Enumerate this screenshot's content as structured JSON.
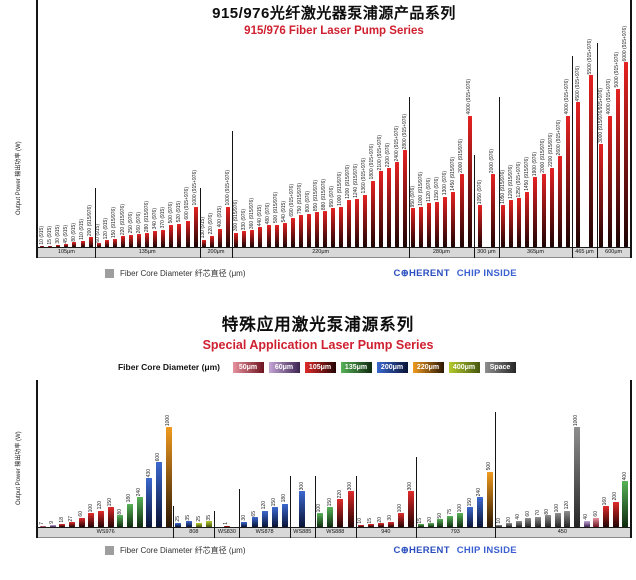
{
  "page": {
    "axis_legend": "Fiber Core Diameter  纤芯直径 (μm)",
    "brand": {
      "c": "C",
      "o": "⊕",
      "rest": "HERENT",
      "suffix": "CHIP INSIDE"
    }
  },
  "chart_data": [
    {
      "type": "bar",
      "title": "915/976光纤激光器泵浦源产品系列",
      "subtitle": "915/976 Fiber Laser Pump Series",
      "ylabel": "Output Power 输出功率 (W)",
      "xlabel": "Fiber Core Diameter 纤芯直径 (μm)",
      "ylim": [
        0,
        6000
      ],
      "grid": false,
      "bar_gradient": {
        "top": "#e62222",
        "bottom": "#1c0404"
      },
      "groups": [
        {
          "label": "105μm",
          "bars": [
            {
              "v": 10,
              "tag": "915"
            },
            {
              "v": 15,
              "tag": "915"
            },
            {
              "v": 30,
              "tag": "915"
            },
            {
              "v": 45,
              "tag": "915"
            },
            {
              "v": 80,
              "tag": "915"
            },
            {
              "v": 110,
              "tag": "915"
            },
            {
              "v": 200,
              "tag": "915/976"
            }
          ]
        },
        {
          "label": "135μm",
          "bars": [
            {
              "v": 60,
              "tag": "915"
            },
            {
              "v": 120,
              "tag": "915"
            },
            {
              "v": 150,
              "tag": "915/976"
            },
            {
              "v": 220,
              "tag": "915/976"
            },
            {
              "v": 250,
              "tag": "976"
            },
            {
              "v": 260,
              "tag": "976"
            },
            {
              "v": 280,
              "tag": "915/976"
            },
            {
              "v": 340,
              "tag": "976"
            },
            {
              "v": 370,
              "tag": "915"
            },
            {
              "v": 500,
              "tag": "976"
            },
            {
              "v": 520,
              "tag": "915"
            },
            {
              "v": 600,
              "tag": "915+976"
            },
            {
              "v": 1000,
              "tag": "915+976"
            }
          ]
        },
        {
          "label": "200μm",
          "bars": [
            {
              "v": 130,
              "tag": "915"
            },
            {
              "v": 220,
              "tag": "976"
            },
            {
              "v": 400,
              "tag": "915"
            },
            {
              "v": 1000,
              "tag": "915+976"
            }
          ]
        },
        {
          "label": "220μm",
          "bars": [
            {
              "v": 300,
              "tag": "915/976"
            },
            {
              "v": 330,
              "tag": "976"
            },
            {
              "v": 360,
              "tag": "915/976"
            },
            {
              "v": 440,
              "tag": "915"
            },
            {
              "v": 480,
              "tag": "976"
            },
            {
              "v": 500,
              "tag": "915/976"
            },
            {
              "v": 540,
              "tag": "915"
            },
            {
              "v": 690,
              "tag": "915+976"
            },
            {
              "v": 750,
              "tag": "915/976"
            },
            {
              "v": 800,
              "tag": "976"
            },
            {
              "v": 850,
              "tag": "915/976"
            },
            {
              "v": 880,
              "tag": "915/976"
            },
            {
              "v": 950,
              "tag": "976"
            },
            {
              "v": 1000,
              "tag": "915/976"
            },
            {
              "v": 1200,
              "tag": "915/976"
            },
            {
              "v": 1240,
              "tag": "915/976"
            },
            {
              "v": 1360,
              "tag": "915+976"
            },
            {
              "v": 1800,
              "tag": "915+976"
            },
            {
              "v": 2100,
              "tag": "915+976"
            },
            {
              "v": 2200,
              "tag": "976"
            },
            {
              "v": 2400,
              "tag": "915+976"
            },
            {
              "v": 2800,
              "tag": "915+976"
            }
          ]
        },
        {
          "label": "280μm",
          "bars": [
            {
              "v": 950,
              "tag": "976"
            },
            {
              "v": 1000,
              "tag": "915/976"
            },
            {
              "v": 1120,
              "tag": "976"
            },
            {
              "v": 1150,
              "tag": "976"
            },
            {
              "v": 1300,
              "tag": "976"
            },
            {
              "v": 1450,
              "tag": "915/976"
            },
            {
              "v": 2000,
              "tag": "915/976"
            },
            {
              "v": 4000,
              "tag": "915+976"
            }
          ]
        },
        {
          "label": "300 μm",
          "bars": [
            {
              "v": 1050,
              "tag": "976"
            },
            {
              "v": 2000,
              "tag": "976"
            }
          ]
        },
        {
          "label": "365μm",
          "bars": [
            {
              "v": 1050,
              "tag": "915/976"
            },
            {
              "v": 1200,
              "tag": "915/976"
            },
            {
              "v": 1250,
              "tag": "915+976"
            },
            {
              "v": 1450,
              "tag": "915/976"
            },
            {
              "v": 1900,
              "tag": "976"
            },
            {
              "v": 2000,
              "tag": "915/976"
            },
            {
              "v": 2200,
              "tag": "915/976"
            },
            {
              "v": 2600,
              "tag": "915+976"
            },
            {
              "v": 4000,
              "tag": "915+976"
            }
          ]
        },
        {
          "label": "465 μm",
          "bars": [
            {
              "v": 4500,
              "tag": "915+976"
            },
            {
              "v": 5500,
              "tag": "915+976"
            }
          ]
        },
        {
          "label": "600μm",
          "bars": [
            {
              "v": 3000,
              "tag": "915/976/915+976"
            },
            {
              "v": 4000,
              "tag": "915+976"
            },
            {
              "v": 5000,
              "tag": "915+976"
            },
            {
              "v": 6000,
              "tag": "915+976"
            }
          ]
        }
      ]
    },
    {
      "type": "bar",
      "title": "特殊应用激光泵浦源系列",
      "subtitle": "Special Application Laser Pump Series",
      "ylabel": "Output Power 输出功率 (W)",
      "xlabel": "Fiber Core Diameter 纤芯直径 (μm)",
      "ylim": [
        0,
        1000
      ],
      "grid": false,
      "legend_title": "Fiber Core Diameter  (μm)",
      "legend": [
        {
          "label": "50μm",
          "top": "#e8919e",
          "bottom": "#6e1420"
        },
        {
          "label": "60μm",
          "top": "#c4a6d6",
          "bottom": "#3c2350"
        },
        {
          "label": "105μm",
          "top": "#e02a2a",
          "bottom": "#230404"
        },
        {
          "label": "135μm",
          "top": "#57b257",
          "bottom": "#0e2a0e"
        },
        {
          "label": "200μm",
          "top": "#3b68cf",
          "bottom": "#091336"
        },
        {
          "label": "220μm",
          "top": "#f09a1e",
          "bottom": "#2b1704"
        },
        {
          "label": "400μm",
          "top": "#b5cb2e",
          "bottom": "#46560f"
        },
        {
          "label": "Space",
          "top": "#8f8f8f",
          "bottom": "#262626"
        }
      ],
      "groups": [
        {
          "label": "WS976",
          "bars": [
            {
              "v": 7,
              "k": "50μm"
            },
            {
              "v": 9,
              "k": "60μm"
            },
            {
              "v": 18,
              "k": "105μm"
            },
            {
              "v": 27,
              "k": "105μm"
            },
            {
              "v": 60,
              "k": "105μm"
            },
            {
              "v": 100,
              "k": "105μm"
            },
            {
              "v": 120,
              "k": "105μm"
            },
            {
              "v": 150,
              "k": "105μm"
            },
            {
              "v": 80,
              "k": "135μm"
            },
            {
              "v": 180,
              "k": "135μm"
            },
            {
              "v": 240,
              "k": "135μm"
            },
            {
              "v": 430,
              "k": "200μm"
            },
            {
              "v": 600,
              "k": "200μm"
            },
            {
              "v": 1000,
              "k": "220μm"
            }
          ]
        },
        {
          "label": "808",
          "bars": [
            {
              "v": 25,
              "k": "200μm"
            },
            {
              "v": 35,
              "k": "200μm"
            },
            {
              "v": 25,
              "k": "400μm"
            },
            {
              "v": 35,
              "k": "400μm"
            }
          ]
        },
        {
          "label": "WS830",
          "bars": [
            {
              "v": 1,
              "k": "105μm"
            }
          ]
        },
        {
          "label": "WS878",
          "bars": [
            {
              "v": 30,
              "k": "200μm"
            },
            {
              "v": 65,
              "k": "200μm"
            },
            {
              "v": 120,
              "k": "200μm"
            },
            {
              "v": 150,
              "k": "200μm"
            },
            {
              "v": 180,
              "k": "200μm"
            }
          ]
        },
        {
          "label": "WS885",
          "bars": [
            {
              "v": 300,
              "k": "200μm"
            }
          ]
        },
        {
          "label": "WS888",
          "bars": [
            {
              "v": 100,
              "k": "135μm"
            },
            {
              "v": 150,
              "k": "135μm"
            },
            {
              "v": 220,
              "k": "105μm"
            },
            {
              "v": 300,
              "k": "105μm"
            }
          ]
        },
        {
          "label": "940",
          "bars": [
            {
              "v": 10,
              "k": "105μm"
            },
            {
              "v": 15,
              "k": "105μm"
            },
            {
              "v": 20,
              "k": "105μm"
            },
            {
              "v": 30,
              "k": "105μm"
            },
            {
              "v": 100,
              "k": "105μm"
            },
            {
              "v": 300,
              "k": "105μm"
            }
          ]
        },
        {
          "label": "793",
          "bars": [
            {
              "v": 15,
              "k": "135μm"
            },
            {
              "v": 20,
              "k": "135μm"
            },
            {
              "v": 50,
              "k": "135μm"
            },
            {
              "v": 75,
              "k": "135μm"
            },
            {
              "v": 100,
              "k": "135μm"
            },
            {
              "v": 150,
              "k": "200μm"
            },
            {
              "v": 240,
              "k": "200μm"
            },
            {
              "v": 500,
              "k": "220μm"
            }
          ]
        },
        {
          "label": "450",
          "bars": [
            {
              "v": 10,
              "k": "Space"
            },
            {
              "v": 20,
              "k": "Space"
            },
            {
              "v": 40,
              "k": "Space"
            },
            {
              "v": 60,
              "k": "Space"
            },
            {
              "v": 70,
              "k": "Space"
            },
            {
              "v": 80,
              "k": "Space"
            },
            {
              "v": 100,
              "k": "Space"
            },
            {
              "v": 120,
              "k": "Space"
            },
            {
              "v": 1000,
              "k": "Space"
            },
            {
              "v": 40,
              "k": "60μm"
            },
            {
              "v": 60,
              "k": "50μm"
            },
            {
              "v": 160,
              "k": "105μm"
            },
            {
              "v": 200,
              "k": "105μm"
            },
            {
              "v": 400,
              "k": "135μm"
            }
          ]
        }
      ]
    }
  ]
}
